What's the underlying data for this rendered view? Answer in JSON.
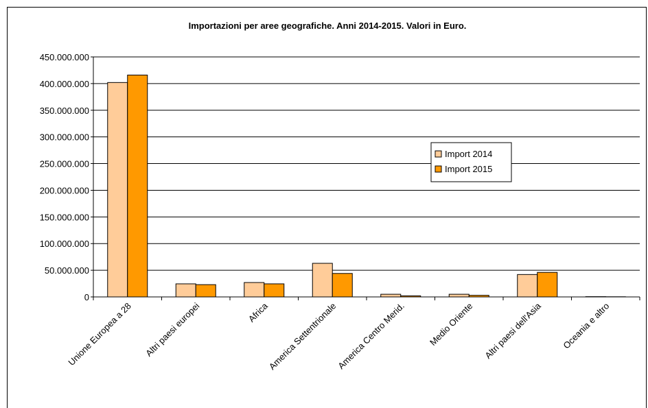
{
  "chart_data": {
    "type": "bar",
    "title": "Importazioni per aree geografiche. Anni 2014-2015. Valori in Euro.",
    "categories": [
      "Unione Europea a 28",
      "Altri paesi europei",
      "Africa",
      "America Settentrionale",
      "America Centro Merid.",
      "Medio Oriente",
      "Altri paesi dell'Asia",
      "Oceania e altro"
    ],
    "series": [
      {
        "name": "Import 2014",
        "color": "#ffcc99",
        "values": [
          402000000,
          24500000,
          27000000,
          63000000,
          5000000,
          5000000,
          42000000,
          500000
        ]
      },
      {
        "name": "Import 2015",
        "color": "#ff9900",
        "values": [
          416000000,
          23000000,
          24500000,
          44000000,
          2000000,
          3000000,
          46000000,
          300000
        ]
      }
    ],
    "ylim": [
      0,
      450000000
    ],
    "yticks": [
      {
        "value": 0,
        "label": "0"
      },
      {
        "value": 50000000,
        "label": "50.000.000"
      },
      {
        "value": 100000000,
        "label": "100.000.000"
      },
      {
        "value": 150000000,
        "label": "150.000.000"
      },
      {
        "value": 200000000,
        "label": "200.000.000"
      },
      {
        "value": 250000000,
        "label": "250.000.000"
      },
      {
        "value": 300000000,
        "label": "300.000.000"
      },
      {
        "value": 350000000,
        "label": "350.000.000"
      },
      {
        "value": 400000000,
        "label": "400.000.000"
      },
      {
        "value": 450000000,
        "label": "450.000.000"
      }
    ],
    "grid": true,
    "legend": "right"
  }
}
